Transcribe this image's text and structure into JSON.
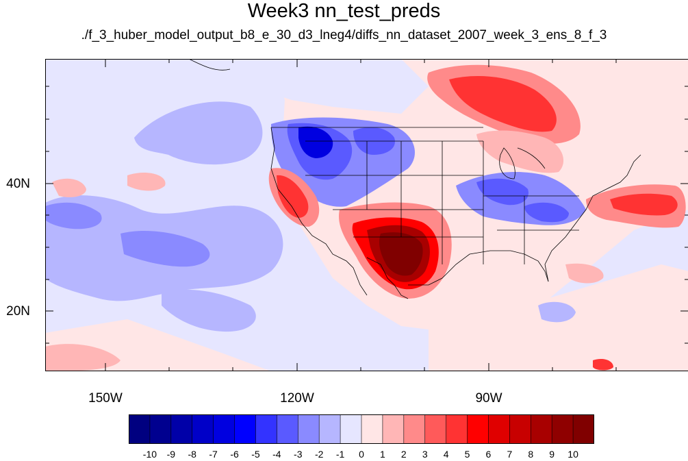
{
  "title": "Week3 nn_test_preds",
  "subtitle": "./f_3_huber_model_output_b8_e_30_d3_lneg4/diffs_nn_dataset_2007_week_3_ens_8_f_3",
  "y_axis": {
    "labels": [
      "40N",
      "20N"
    ]
  },
  "x_axis": {
    "labels": [
      "150W",
      "120W",
      "90W"
    ]
  },
  "colorbar": {
    "labels": [
      "-10",
      "-9",
      "-8",
      "-7",
      "-6",
      "-5",
      "-4",
      "-3",
      "-2",
      "-1",
      "0",
      "1",
      "2",
      "3",
      "4",
      "5",
      "6",
      "7",
      "8",
      "9",
      "10"
    ],
    "colors": [
      "#000080",
      "#00008f",
      "#0000a8",
      "#0000c8",
      "#0000e0",
      "#0000ff",
      "#3333ff",
      "#5a5aff",
      "#8a8aff",
      "#b6b6ff",
      "#e6e6ff",
      "#ffe6e6",
      "#ffb6b6",
      "#ff8a8a",
      "#ff5a5a",
      "#ff3333",
      "#ff0000",
      "#e00000",
      "#c80000",
      "#a80000",
      "#8f0000",
      "#800000"
    ]
  },
  "palette": {
    "ocean_base": "#e6e6ff",
    "light_blue": "#b6b6ff",
    "mid_blue": "#8a8aff",
    "blue": "#5a5aff",
    "deep_blue": "#0000e0",
    "light_red": "#ffe6e6",
    "pink": "#ffb6b6",
    "salmon": "#ff8a8a",
    "red": "#ff3333",
    "bright_red": "#ff0000",
    "dark_red": "#a80000",
    "maroon": "#800000"
  }
}
